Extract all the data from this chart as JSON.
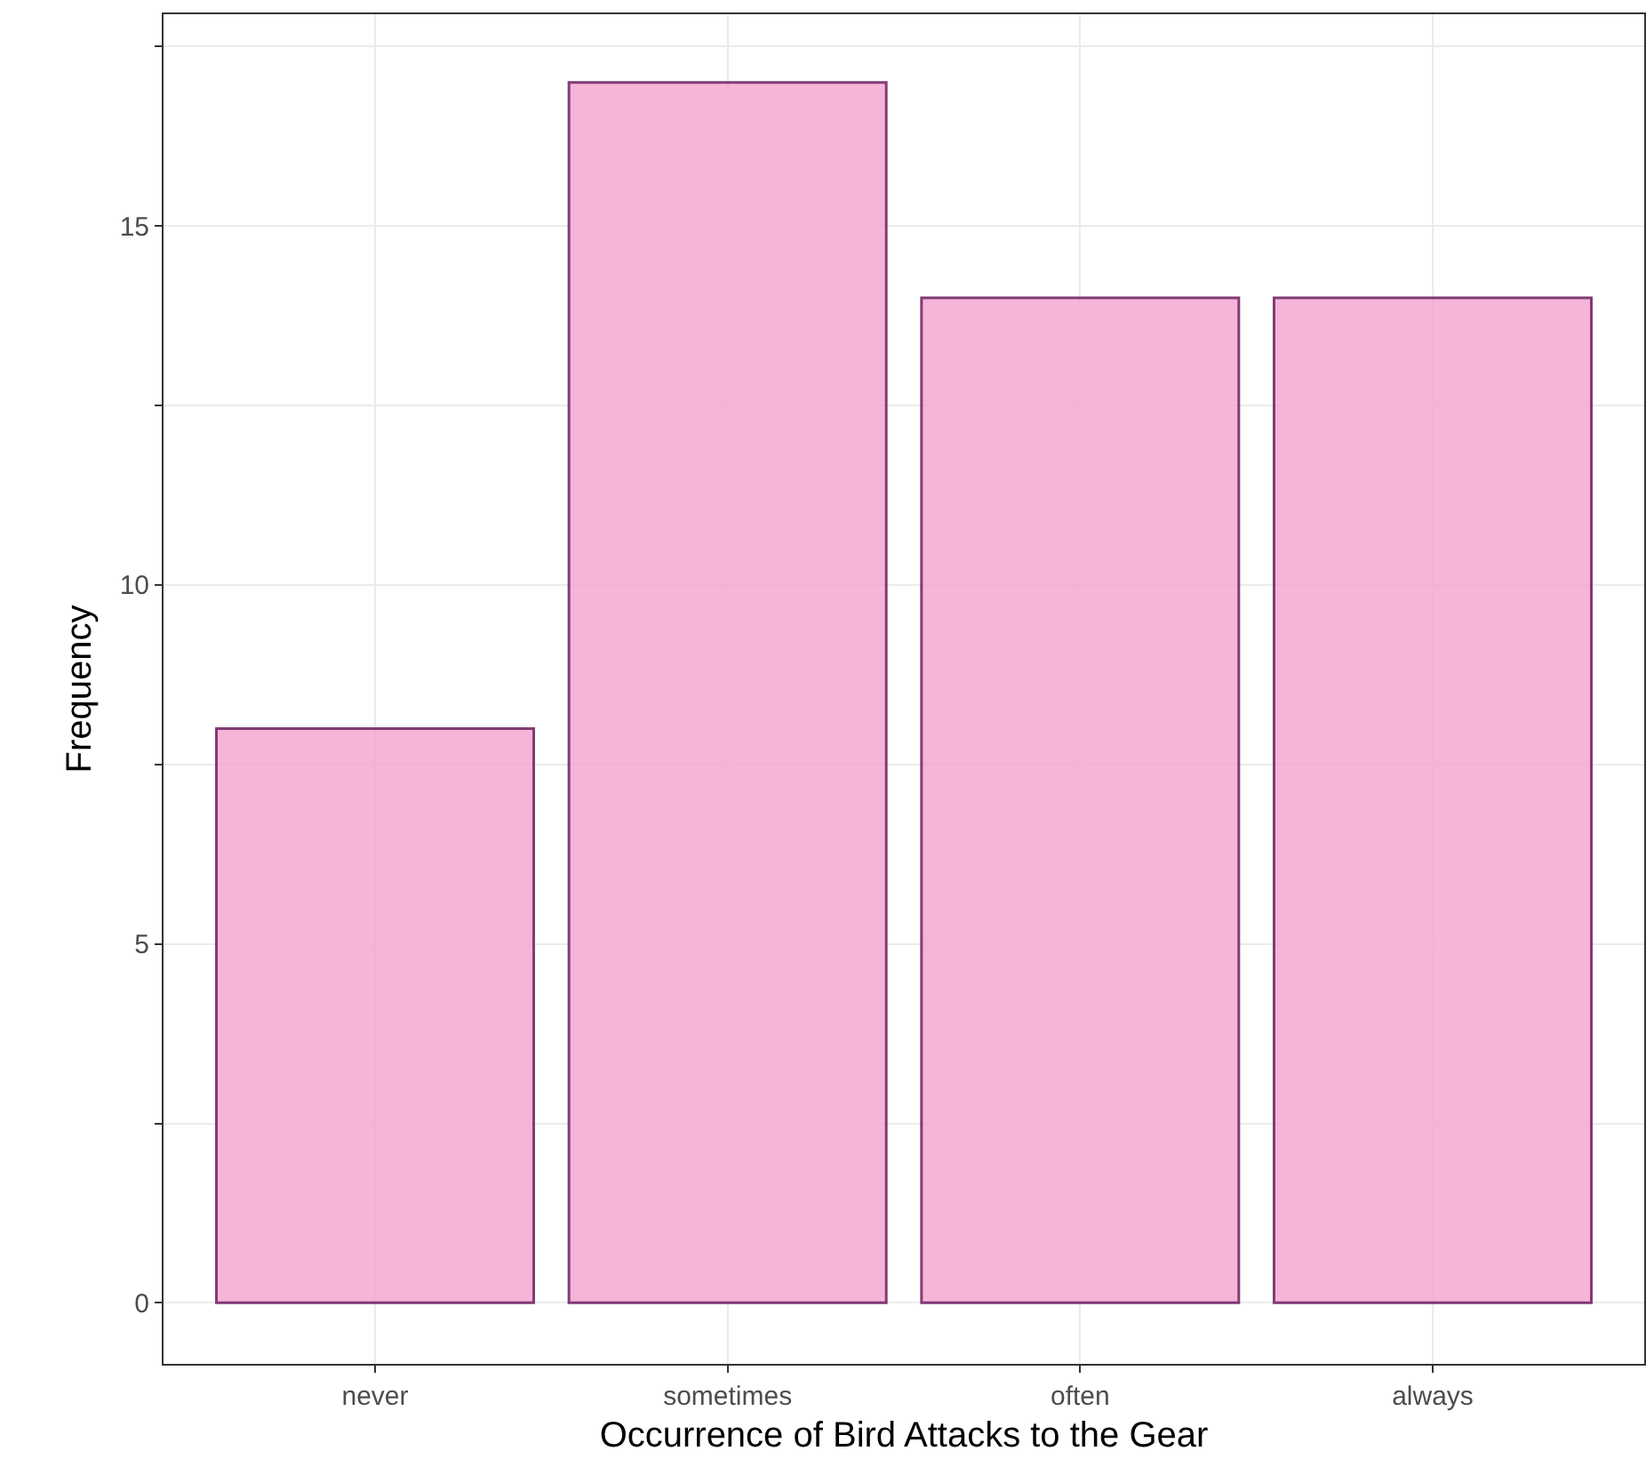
{
  "chart_data": {
    "type": "bar",
    "xlabel": "Occurrence of Bird Attacks to the Gear",
    "ylabel": "Frequency",
    "categories": [
      "never",
      "sometimes",
      "often",
      "always"
    ],
    "values": [
      8,
      17,
      14,
      14
    ],
    "color": "#f5a9d2",
    "ylim": [
      -0.85,
      17.95
    ],
    "yticks": [
      0,
      {
        "value": 2.5,
        "label": null
      },
      5,
      {
        "value": 7.5,
        "label": null
      },
      10,
      {
        "value": 12.5,
        "label": null
      },
      15,
      {
        "value": 17.5,
        "label": null
      }
    ],
    "grid": true
  }
}
